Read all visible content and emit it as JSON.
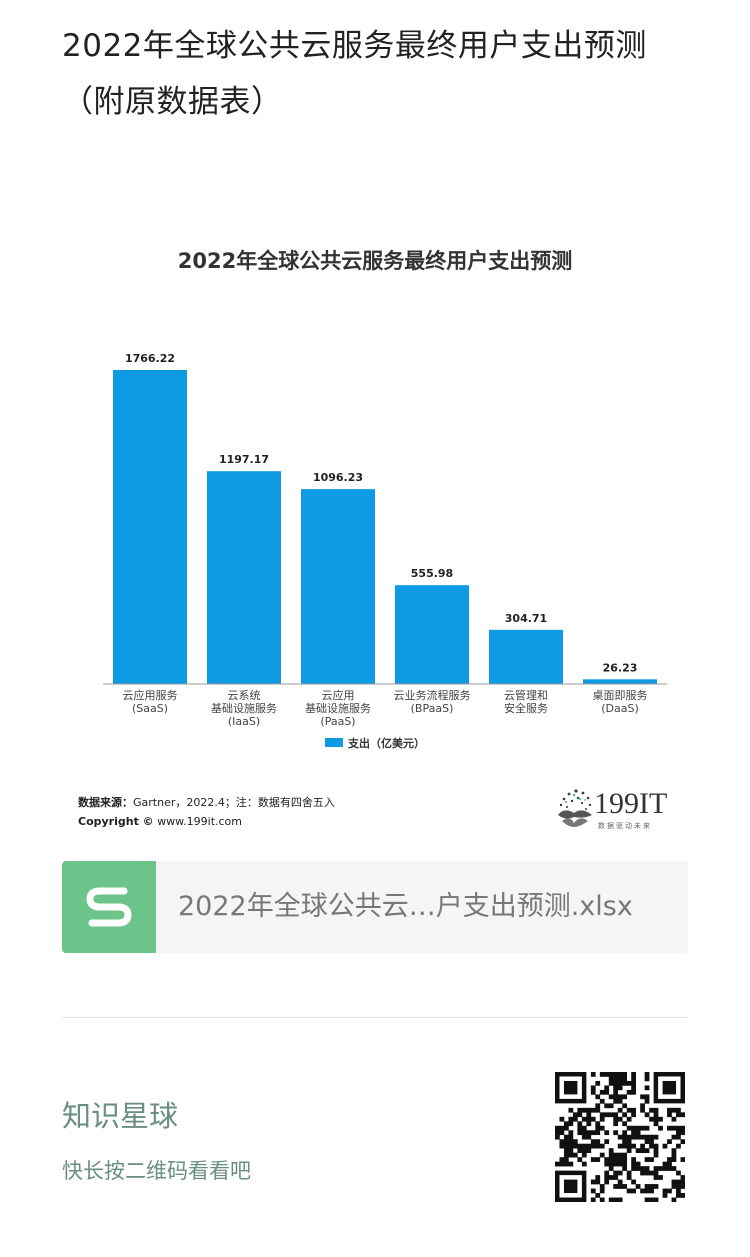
{
  "article": {
    "title": "2022年全球公共云服务最终用户支出预测（附原数据表）"
  },
  "chart_data": {
    "type": "bar",
    "title": "2022年全球公共云服务最终用户支出预测",
    "categories": [
      [
        "云应用服务",
        "(SaaS)"
      ],
      [
        "云系统",
        "基础设施服务",
        "(IaaS)"
      ],
      [
        "云应用",
        "基础设施服务",
        "(PaaS)"
      ],
      [
        "云业务流程服务",
        "(BPaaS)"
      ],
      [
        "云管理和",
        "安全服务"
      ],
      [
        "桌面即服务",
        "(DaaS)"
      ]
    ],
    "series": [
      {
        "name": "支出（亿美元）",
        "values": [
          1766.22,
          1197.17,
          1096.23,
          555.98,
          304.71,
          26.23
        ]
      }
    ],
    "data_labels": [
      "1766.22",
      "1197.17",
      "1096.23",
      "555.98",
      "304.71",
      "26.23"
    ],
    "ylim": [
      0,
      1766.22
    ],
    "legend_position": "bottom",
    "grid": false,
    "bar_color": "#0e9be4"
  },
  "chart_footer": {
    "source_label": "数据来源：",
    "source_text": "Gartner，2022.4；注：数据有四舍五入",
    "copyright_label": "Copyright ©",
    "copyright_text": "www.199it.com",
    "logo_text": "199IT",
    "logo_sub": "数据驱动未来"
  },
  "attachment": {
    "file_name": "2022年全球公共云…户支出预测.xlsx",
    "icon": "spreadsheet-s-icon",
    "icon_color": "#6cc48a"
  },
  "planet": {
    "title": "知识星球",
    "hint": "快长按二维码看看吧",
    "qr_icon": "qr-code-icon"
  }
}
